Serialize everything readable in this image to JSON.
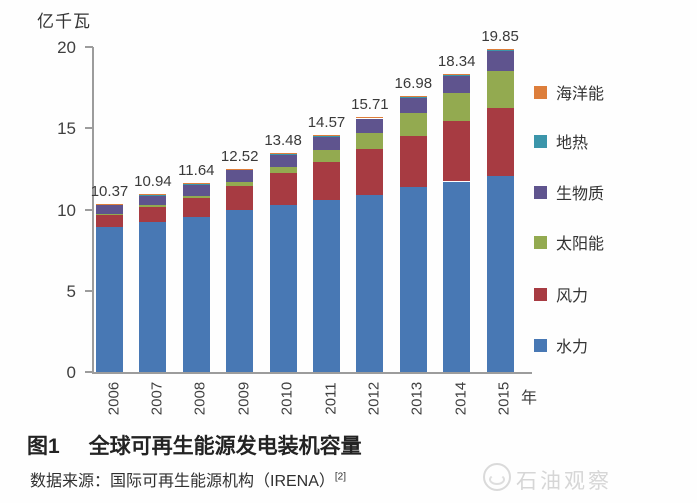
{
  "chart": {
    "y_axis_title": "亿千瓦",
    "x_axis_suffix": "年",
    "y_ticks": [
      0,
      5,
      10,
      15,
      20
    ]
  },
  "chart_data": {
    "type": "bar",
    "stacked": true,
    "title": "全球可再生能源发电装机容量",
    "unit": "亿千瓦",
    "xlabel": "年",
    "ylabel": "亿千瓦",
    "ylim": [
      0,
      20
    ],
    "grid": false,
    "legend_position": "right",
    "categories": [
      "2006",
      "2007",
      "2008",
      "2009",
      "2010",
      "2011",
      "2012",
      "2013",
      "2014",
      "2015"
    ],
    "series": [
      {
        "key": "hydro",
        "name": "水力",
        "color": "#4878b4",
        "values": [
          8.93,
          9.23,
          9.55,
          9.96,
          10.25,
          10.57,
          10.88,
          11.36,
          11.72,
          12.09
        ]
      },
      {
        "key": "wind",
        "name": "风力",
        "color": "#a73b42",
        "values": [
          0.74,
          0.94,
          1.15,
          1.5,
          1.98,
          2.38,
          2.83,
          3.18,
          3.7,
          4.17
        ]
      },
      {
        "key": "solar",
        "name": "太阳能",
        "color": "#93aa50",
        "values": [
          0.06,
          0.09,
          0.15,
          0.23,
          0.4,
          0.72,
          1.01,
          1.39,
          1.77,
          2.27
        ]
      },
      {
        "key": "biomass",
        "name": "生物质",
        "color": "#5f548e",
        "values": [
          0.53,
          0.57,
          0.68,
          0.72,
          0.74,
          0.79,
          0.88,
          0.94,
          1.03,
          1.2
        ]
      },
      {
        "key": "geothermal",
        "name": "地热",
        "color": "#3b95aa",
        "values": [
          0.1,
          0.1,
          0.1,
          0.1,
          0.1,
          0.1,
          0.1,
          0.1,
          0.11,
          0.11
        ]
      },
      {
        "key": "marine",
        "name": "海洋能",
        "color": "#dd7e3b",
        "values": [
          0.01,
          0.01,
          0.01,
          0.01,
          0.01,
          0.01,
          0.01,
          0.01,
          0.01,
          0.01
        ]
      }
    ],
    "totals": [
      "10.37",
      "10.94",
      "11.64",
      "12.52",
      "13.48",
      "14.57",
      "15.71",
      "16.98",
      "18.34",
      "19.85"
    ]
  },
  "legend": {
    "items": [
      {
        "label": "海洋能",
        "color": "#dd7e3b"
      },
      {
        "label": "地热",
        "color": "#3b95aa"
      },
      {
        "label": "生物质",
        "color": "#5f548e"
      },
      {
        "label": "太阳能",
        "color": "#93aa50"
      },
      {
        "label": "风力",
        "color": "#a73b42"
      },
      {
        "label": "水力",
        "color": "#4878b4"
      }
    ]
  },
  "caption": {
    "figure_label": "图1",
    "title": "全球可再生能源发电装机容量"
  },
  "source": {
    "prefix": "数据来源：国际可再生能源机构（IRENA）",
    "superscript": "[2]"
  },
  "watermark": {
    "text": "石油观察"
  }
}
